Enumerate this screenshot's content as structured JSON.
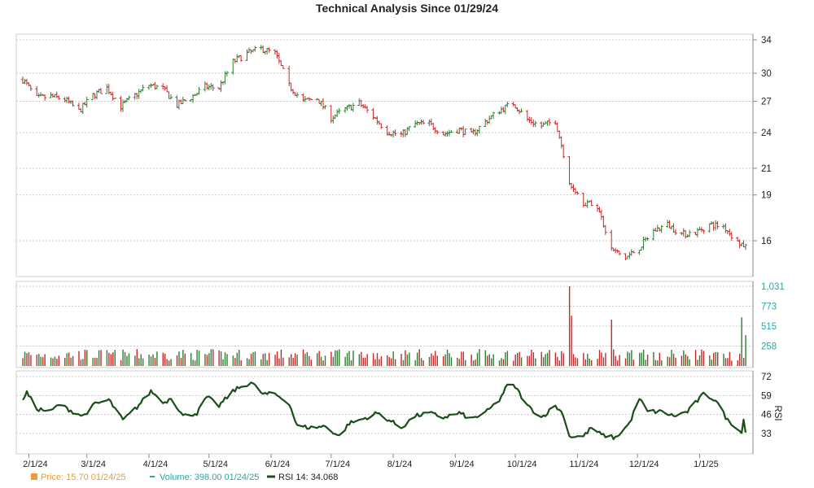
{
  "chart_data": {
    "type": "ohlc",
    "title": "Technical Analysis Since 01/29/24",
    "colors": {
      "up": "#2e7d32",
      "down": "#c62828",
      "volume_axis": "#2aa7a7",
      "rsi_line": "#1b4d1b",
      "grid": "#c8c8c8"
    },
    "x_ticks": [
      "2/1/24",
      "3/1/24",
      "4/1/24",
      "5/1/24",
      "6/1/24",
      "7/1/24",
      "8/1/24",
      "9/1/24",
      "10/1/24",
      "11/1/24",
      "12/1/24",
      "1/1/25"
    ],
    "price": {
      "y_ticks": [
        34,
        30,
        27,
        24,
        21,
        19,
        16
      ],
      "ylim": [
        13.5,
        35
      ],
      "close_points": [
        [
          "2024-01-29",
          29.3
        ],
        [
          "2024-02-05",
          27.3
        ],
        [
          "2024-02-12",
          27.5
        ],
        [
          "2024-02-19",
          27.2
        ],
        [
          "2024-02-26",
          26.0
        ],
        [
          "2024-03-04",
          27.6
        ],
        [
          "2024-03-11",
          28.4
        ],
        [
          "2024-03-18",
          26.5
        ],
        [
          "2024-03-25",
          27.6
        ],
        [
          "2024-04-01",
          28.7
        ],
        [
          "2024-04-08",
          28.3
        ],
        [
          "2024-04-15",
          26.6
        ],
        [
          "2024-04-22",
          27.4
        ],
        [
          "2024-04-29",
          28.5
        ],
        [
          "2024-05-06",
          28.4
        ],
        [
          "2024-05-13",
          31.3
        ],
        [
          "2024-05-20",
          32.3
        ],
        [
          "2024-05-27",
          32.9
        ],
        [
          "2024-06-03",
          32.3
        ],
        [
          "2024-06-10",
          28.6
        ],
        [
          "2024-06-17",
          27.0
        ],
        [
          "2024-06-24",
          27.3
        ],
        [
          "2024-07-01",
          25.4
        ],
        [
          "2024-07-08",
          26.2
        ],
        [
          "2024-07-15",
          26.8
        ],
        [
          "2024-07-22",
          25.5
        ],
        [
          "2024-07-29",
          24.1
        ],
        [
          "2024-08-05",
          23.8
        ],
        [
          "2024-08-12",
          24.8
        ],
        [
          "2024-08-19",
          24.8
        ],
        [
          "2024-08-26",
          23.9
        ],
        [
          "2024-09-03",
          24.3
        ],
        [
          "2024-09-09",
          23.8
        ],
        [
          "2024-09-16",
          25.0
        ],
        [
          "2024-09-23",
          26.1
        ],
        [
          "2024-09-30",
          26.8
        ],
        [
          "2024-10-07",
          25.2
        ],
        [
          "2024-10-14",
          24.6
        ],
        [
          "2024-10-21",
          25.1
        ],
        [
          "2024-10-28",
          20.0
        ],
        [
          "2024-11-04",
          18.5
        ],
        [
          "2024-11-11",
          18.2
        ],
        [
          "2024-11-18",
          15.5
        ],
        [
          "2024-11-25",
          15.0
        ],
        [
          "2024-12-02",
          15.6
        ],
        [
          "2024-12-09",
          16.6
        ],
        [
          "2024-12-16",
          17.0
        ],
        [
          "2024-12-23",
          16.4
        ],
        [
          "2024-12-30",
          16.5
        ],
        [
          "2025-01-06",
          17.0
        ],
        [
          "2025-01-13",
          16.9
        ],
        [
          "2025-01-20",
          15.9
        ],
        [
          "2025-01-24",
          15.7
        ]
      ]
    },
    "volume": {
      "y_ticks": [
        "1,031",
        "773",
        "515",
        "258"
      ],
      "ylim": [
        0,
        1031
      ],
      "baseline": 200,
      "spikes": [
        [
          "2024-10-28",
          1031
        ],
        [
          "2024-10-29",
          650
        ],
        [
          "2024-11-18",
          600
        ],
        [
          "2025-01-22",
          630
        ],
        [
          "2025-01-24",
          398
        ]
      ]
    },
    "rsi": {
      "y_ticks": [
        72,
        59,
        46,
        33
      ],
      "label": "RSI",
      "ylim": [
        27,
        74
      ],
      "points": [
        [
          "2024-01-29",
          57
        ],
        [
          "2024-01-31",
          61
        ],
        [
          "2024-02-05",
          50
        ],
        [
          "2024-02-12",
          48
        ],
        [
          "2024-02-16",
          53
        ],
        [
          "2024-02-23",
          48
        ],
        [
          "2024-02-28",
          45
        ],
        [
          "2024-03-05",
          53
        ],
        [
          "2024-03-12",
          56
        ],
        [
          "2024-03-19",
          42
        ],
        [
          "2024-03-26",
          51
        ],
        [
          "2024-04-02",
          62
        ],
        [
          "2024-04-09",
          54
        ],
        [
          "2024-04-12",
          58
        ],
        [
          "2024-04-18",
          45
        ],
        [
          "2024-04-25",
          47
        ],
        [
          "2024-04-30",
          58
        ],
        [
          "2024-05-06",
          52
        ],
        [
          "2024-05-13",
          62
        ],
        [
          "2024-05-17",
          65
        ],
        [
          "2024-05-22",
          68
        ],
        [
          "2024-05-28",
          60
        ],
        [
          "2024-06-03",
          60
        ],
        [
          "2024-06-10",
          54
        ],
        [
          "2024-06-14",
          38
        ],
        [
          "2024-06-21",
          37
        ],
        [
          "2024-06-28",
          38
        ],
        [
          "2024-07-05",
          31
        ],
        [
          "2024-07-10",
          40
        ],
        [
          "2024-07-17",
          43
        ],
        [
          "2024-07-24",
          47
        ],
        [
          "2024-07-29",
          43
        ],
        [
          "2024-08-05",
          37
        ],
        [
          "2024-08-12",
          45
        ],
        [
          "2024-08-19",
          47
        ],
        [
          "2024-08-26",
          44
        ],
        [
          "2024-09-03",
          47
        ],
        [
          "2024-09-09",
          43
        ],
        [
          "2024-09-16",
          47
        ],
        [
          "2024-09-23",
          56
        ],
        [
          "2024-09-27",
          66
        ],
        [
          "2024-10-01",
          65
        ],
        [
          "2024-10-07",
          52
        ],
        [
          "2024-10-14",
          44
        ],
        [
          "2024-10-21",
          52
        ],
        [
          "2024-10-25",
          46
        ],
        [
          "2024-10-28",
          31
        ],
        [
          "2024-11-04",
          31
        ],
        [
          "2024-11-08",
          37
        ],
        [
          "2024-11-13",
          32
        ],
        [
          "2024-11-20",
          30
        ],
        [
          "2024-11-27",
          40
        ],
        [
          "2024-12-02",
          57
        ],
        [
          "2024-12-06",
          48
        ],
        [
          "2024-12-13",
          48
        ],
        [
          "2024-12-19",
          45
        ],
        [
          "2024-12-26",
          48
        ],
        [
          "2025-01-03",
          60
        ],
        [
          "2025-01-09",
          56
        ],
        [
          "2025-01-15",
          42
        ],
        [
          "2025-01-20",
          37
        ],
        [
          "2025-01-22",
          33
        ],
        [
          "2025-01-23",
          44
        ],
        [
          "2025-01-24",
          34
        ]
      ]
    },
    "legend": {
      "price": "Price: 15.70  01/24/25",
      "volume": "Volume: 398.00  01/24/25",
      "rsi": "RSI 14: 34.068"
    }
  }
}
